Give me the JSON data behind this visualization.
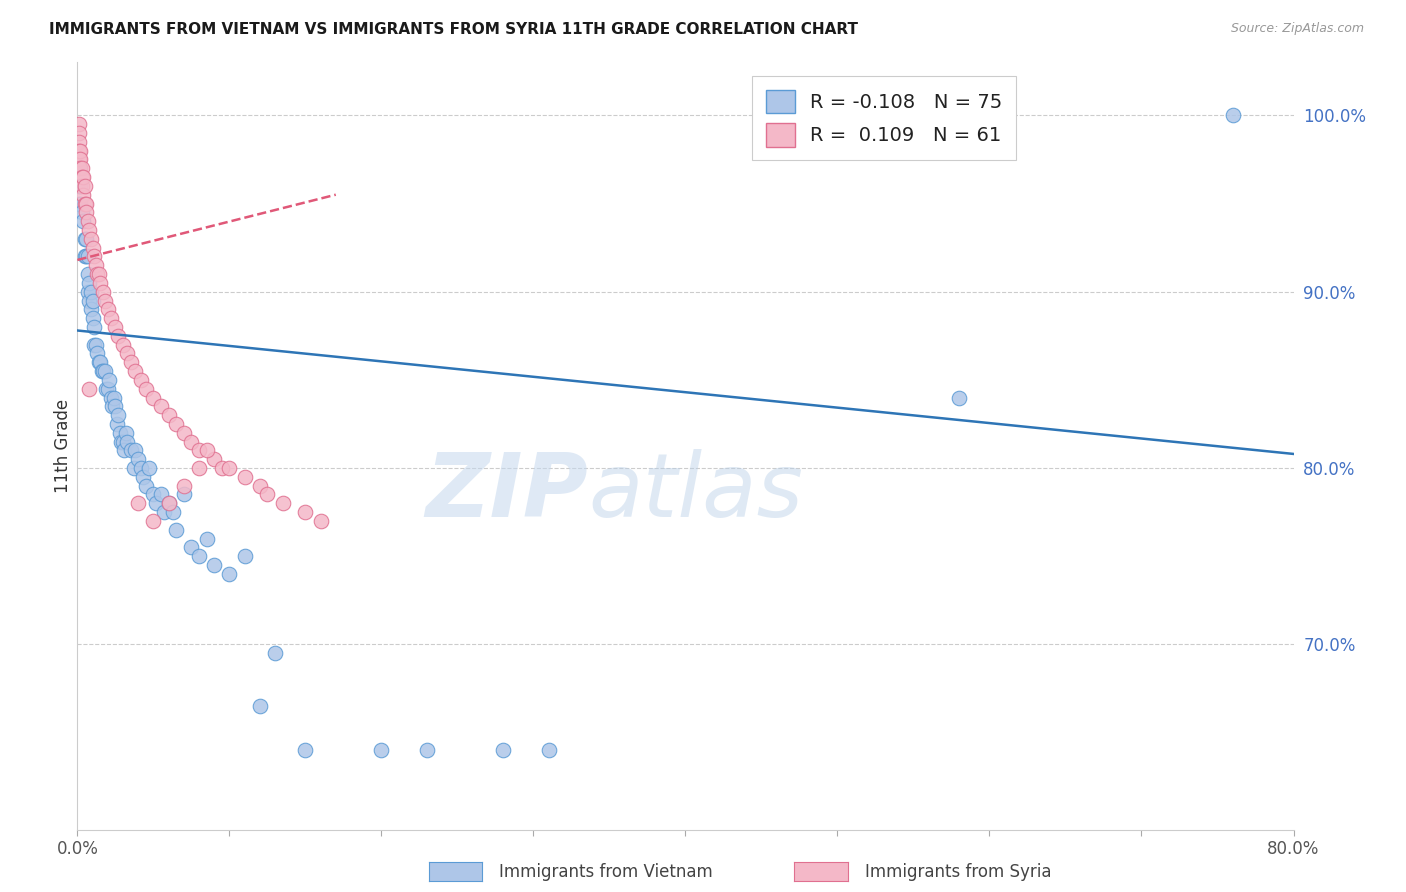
{
  "title": "IMMIGRANTS FROM VIETNAM VS IMMIGRANTS FROM SYRIA 11TH GRADE CORRELATION CHART",
  "source": "Source: ZipAtlas.com",
  "ylabel": "11th Grade",
  "right_yticks": [
    0.7,
    0.8,
    0.9,
    1.0
  ],
  "right_yticklabels": [
    "70.0%",
    "80.0%",
    "90.0%",
    "100.0%"
  ],
  "legend_blue_r": "-0.108",
  "legend_blue_n": "75",
  "legend_pink_r": "0.109",
  "legend_pink_n": "61",
  "legend_label_blue": "Immigrants from Vietnam",
  "legend_label_pink": "Immigrants from Syria",
  "blue_color": "#aec6e8",
  "pink_color": "#f4b8c8",
  "blue_edge_color": "#5b9bd5",
  "pink_edge_color": "#e07090",
  "blue_line_color": "#2e75b6",
  "pink_line_color": "#e05878",
  "watermark_zip": "ZIP",
  "watermark_atlas": "atlas",
  "xlim": [
    0.0,
    0.8
  ],
  "ylim": [
    0.595,
    1.03
  ],
  "blue_trend_x": [
    0.0,
    0.8
  ],
  "blue_trend_y": [
    0.878,
    0.808
  ],
  "pink_trend_x": [
    0.0,
    0.17
  ],
  "pink_trend_y": [
    0.918,
    0.955
  ],
  "blue_scatter_x": [
    0.001,
    0.001,
    0.001,
    0.002,
    0.002,
    0.003,
    0.004,
    0.005,
    0.005,
    0.006,
    0.006,
    0.007,
    0.007,
    0.007,
    0.008,
    0.008,
    0.009,
    0.009,
    0.01,
    0.01,
    0.011,
    0.011,
    0.012,
    0.013,
    0.014,
    0.015,
    0.016,
    0.017,
    0.018,
    0.019,
    0.02,
    0.021,
    0.022,
    0.023,
    0.024,
    0.025,
    0.026,
    0.027,
    0.028,
    0.029,
    0.03,
    0.031,
    0.032,
    0.033,
    0.035,
    0.037,
    0.038,
    0.04,
    0.042,
    0.043,
    0.045,
    0.047,
    0.05,
    0.052,
    0.055,
    0.057,
    0.06,
    0.063,
    0.065,
    0.07,
    0.075,
    0.08,
    0.085,
    0.09,
    0.1,
    0.11,
    0.12,
    0.13,
    0.15,
    0.2,
    0.23,
    0.28,
    0.31,
    0.58,
    0.76
  ],
  "blue_scatter_y": [
    0.97,
    0.96,
    0.95,
    0.96,
    0.95,
    0.945,
    0.94,
    0.93,
    0.92,
    0.93,
    0.92,
    0.92,
    0.91,
    0.9,
    0.905,
    0.895,
    0.9,
    0.89,
    0.895,
    0.885,
    0.88,
    0.87,
    0.87,
    0.865,
    0.86,
    0.86,
    0.855,
    0.855,
    0.855,
    0.845,
    0.845,
    0.85,
    0.84,
    0.835,
    0.84,
    0.835,
    0.825,
    0.83,
    0.82,
    0.815,
    0.815,
    0.81,
    0.82,
    0.815,
    0.81,
    0.8,
    0.81,
    0.805,
    0.8,
    0.795,
    0.79,
    0.8,
    0.785,
    0.78,
    0.785,
    0.775,
    0.78,
    0.775,
    0.765,
    0.785,
    0.755,
    0.75,
    0.76,
    0.745,
    0.74,
    0.75,
    0.665,
    0.695,
    0.64,
    0.64,
    0.64,
    0.64,
    0.64,
    0.84,
    1.0
  ],
  "pink_scatter_x": [
    0.001,
    0.001,
    0.001,
    0.001,
    0.001,
    0.002,
    0.002,
    0.002,
    0.003,
    0.003,
    0.003,
    0.004,
    0.004,
    0.005,
    0.005,
    0.006,
    0.006,
    0.007,
    0.008,
    0.009,
    0.01,
    0.011,
    0.012,
    0.013,
    0.014,
    0.015,
    0.017,
    0.018,
    0.02,
    0.022,
    0.025,
    0.027,
    0.03,
    0.033,
    0.035,
    0.038,
    0.042,
    0.045,
    0.05,
    0.055,
    0.06,
    0.065,
    0.07,
    0.075,
    0.08,
    0.09,
    0.095,
    0.1,
    0.11,
    0.12,
    0.125,
    0.135,
    0.15,
    0.16,
    0.008,
    0.04,
    0.05,
    0.06,
    0.07,
    0.08,
    0.085
  ],
  "pink_scatter_y": [
    0.995,
    0.99,
    0.985,
    0.98,
    0.975,
    0.98,
    0.975,
    0.97,
    0.97,
    0.965,
    0.96,
    0.965,
    0.955,
    0.96,
    0.95,
    0.95,
    0.945,
    0.94,
    0.935,
    0.93,
    0.925,
    0.92,
    0.915,
    0.91,
    0.91,
    0.905,
    0.9,
    0.895,
    0.89,
    0.885,
    0.88,
    0.875,
    0.87,
    0.865,
    0.86,
    0.855,
    0.85,
    0.845,
    0.84,
    0.835,
    0.83,
    0.825,
    0.82,
    0.815,
    0.81,
    0.805,
    0.8,
    0.8,
    0.795,
    0.79,
    0.785,
    0.78,
    0.775,
    0.77,
    0.845,
    0.78,
    0.77,
    0.78,
    0.79,
    0.8,
    0.81
  ]
}
